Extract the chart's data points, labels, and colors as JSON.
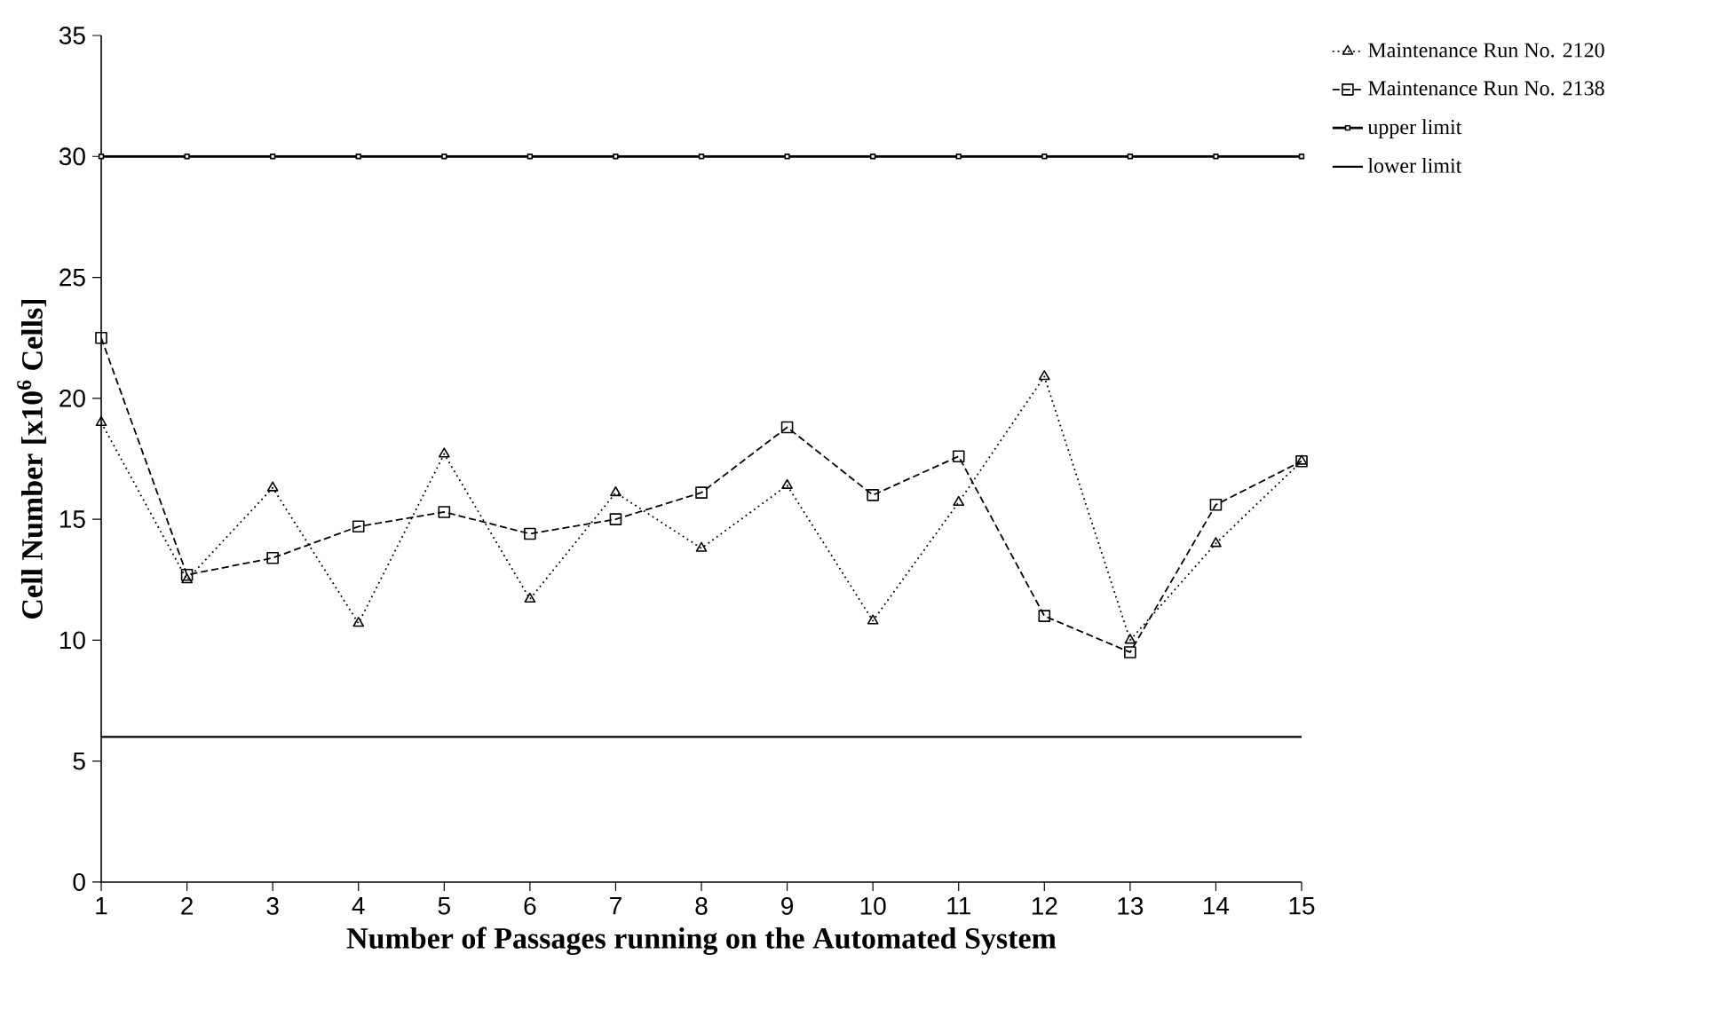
{
  "chart_data": {
    "type": "line",
    "xlabel": "Number of Passages running on the Automated System",
    "ylabel": "Cell Number [x10$^{6}$ Cells]",
    "categories": [
      "1",
      "2",
      "3",
      "4",
      "5",
      "6",
      "7",
      "8",
      "9",
      "10",
      "11",
      "12",
      "13",
      "14",
      "15"
    ],
    "series": [
      {
        "name": "Maintenance Run No. 2120",
        "color": "#000000",
        "marker": "triangle",
        "line_style": "dotted",
        "values": [
          19.0,
          12.5,
          16.3,
          10.7,
          17.7,
          11.7,
          16.1,
          13.8,
          16.4,
          10.8,
          15.7,
          20.9,
          10.0,
          14.0,
          17.4
        ]
      },
      {
        "name": "Maintenance Run No. 2138",
        "color": "#000000",
        "marker": "square",
        "line_style": "dashed",
        "values": [
          22.5,
          12.7,
          13.4,
          14.7,
          15.3,
          14.4,
          15.0,
          16.1,
          18.8,
          16.0,
          17.6,
          11.0,
          9.5,
          15.6,
          17.4
        ]
      },
      {
        "name": "upper limit",
        "color": "#000000",
        "marker": "square",
        "line_style": "solid",
        "values": [
          30,
          30,
          30,
          30,
          30,
          30,
          30,
          30,
          30,
          30,
          30,
          30,
          30,
          30,
          30
        ]
      },
      {
        "name": "lower limit",
        "color": "#000000",
        "marker": "none",
        "line_style": "solid",
        "values": [
          6,
          6,
          6,
          6,
          6,
          6,
          6,
          6,
          6,
          6,
          6,
          6,
          6,
          6,
          6
        ]
      }
    ],
    "ylim": [
      0,
      35
    ],
    "yticks": [
      0,
      5,
      10,
      15,
      20,
      25,
      30,
      35
    ],
    "legend": "right",
    "grid": false
  }
}
